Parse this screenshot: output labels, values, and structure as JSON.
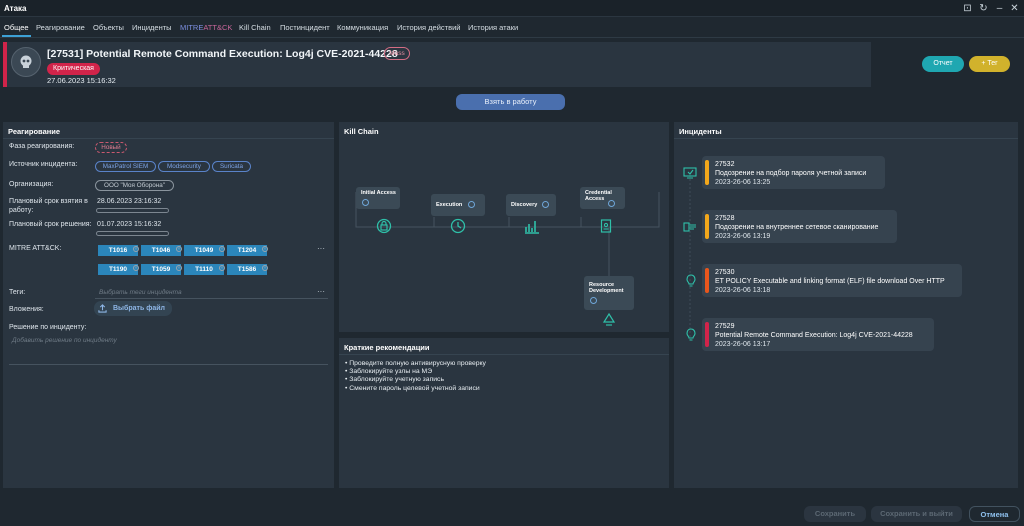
{
  "window": {
    "title": "Атака"
  },
  "tabs": [
    {
      "label": "Общее"
    },
    {
      "label": "Реагирование"
    },
    {
      "label": "Объекты"
    },
    {
      "label": "Инциденты"
    },
    {
      "label_part1": "MITRE",
      "label_part2": "ATT&CK"
    },
    {
      "label": "Kill Chain"
    },
    {
      "label": "Постинцидент"
    },
    {
      "label": "Коммуникация"
    },
    {
      "label": "История действий"
    },
    {
      "label": "История атаки"
    }
  ],
  "header": {
    "title": "[27531] Potential Remote Command Execution: Log4j CVE-2021-44228",
    "mass_badge": "Mass",
    "severity": "Критическая",
    "date": "27.06.2023 15:16:32",
    "report_button": "Отчет",
    "tag_button": "+ Тег",
    "take_button": "Взять в работу"
  },
  "response": {
    "title": "Реагирование",
    "phase_label": "Фаза реагирования:",
    "phase_value": "Новый",
    "source_label": "Источник инцидента:",
    "sources": [
      "MaxPatrol SIEM",
      "Modsecurity",
      "Suricata"
    ],
    "org_label": "Организация:",
    "org_value": "ООО \"Моя Оборона\"",
    "take_deadline_label": "Плановый срок взятия в работу:",
    "take_deadline_value": "28.06.2023 23:16:32",
    "resolve_deadline_label": "Плановый срок решения:",
    "resolve_deadline_value": "01.07.2023 15:16:32",
    "mitre_label": "MITRE ATT&CK:",
    "mitre_tags": [
      "T1016",
      "T1046",
      "T1049",
      "T1204",
      "T1190",
      "T1059",
      "T1110",
      "T1586"
    ],
    "tags_label": "Теги:",
    "tags_placeholder": "Выбрать теги инцидента",
    "attachments_label": "Вложения:",
    "file_button": "Выбрать файл",
    "decision_label": "Решение по инциденту:",
    "decision_placeholder": "Добавить решение по инциденту"
  },
  "killchain": {
    "title": "Kill Chain",
    "stages": [
      {
        "name": "Initial Access",
        "icon": "lock-icon"
      },
      {
        "name": "Execution",
        "icon": "clock-icon"
      },
      {
        "name": "Discovery",
        "icon": "bar-chart-icon"
      },
      {
        "name": "Credential Access",
        "icon": "badge-icon"
      },
      {
        "name": "Resource Development",
        "icon": "recycle-icon"
      }
    ]
  },
  "recommendations": {
    "title": "Краткие рекомендации",
    "items": [
      "• Проведите полную антивирусную проверку",
      "• Заблокируйте узлы на МЭ",
      "• Заблокируйте учетную запись",
      "• Смените пароль целевой учетной записи"
    ]
  },
  "incidents": {
    "title": "Инциденты",
    "items": [
      {
        "id": "27532",
        "name": "Подозрение на подбор пароля учетной записи",
        "date": "2023-26-06 13:25",
        "color": "#f2a71b",
        "icon": "monitor-check-icon"
      },
      {
        "id": "27528",
        "name": "Подозрение на внутреннее сетевое сканирование",
        "date": "2023-26-06 13:19",
        "color": "#f2a71b",
        "icon": "network-scan-icon"
      },
      {
        "id": "27530",
        "name": "ET POLICY Executable and linking format (ELF) file download Over HTTP",
        "date": "2023-26-06 13:18",
        "color": "#e8561c",
        "icon": "alert-bulb-icon"
      },
      {
        "id": "27529",
        "name": "Potential Remote Command Execution: Log4j CVE-2021-44228",
        "date": "2023-26-06 13:17",
        "color": "#d1244a",
        "icon": "alert-bulb-icon"
      }
    ]
  },
  "footer": {
    "save": "Сохранить",
    "save_exit": "Сохранить и выйти",
    "cancel": "Отмена"
  },
  "colors": {
    "accent": "#3da1d6",
    "critical": "#d1244a",
    "report": "#1fa7b1",
    "tag": "#d1b22c"
  }
}
